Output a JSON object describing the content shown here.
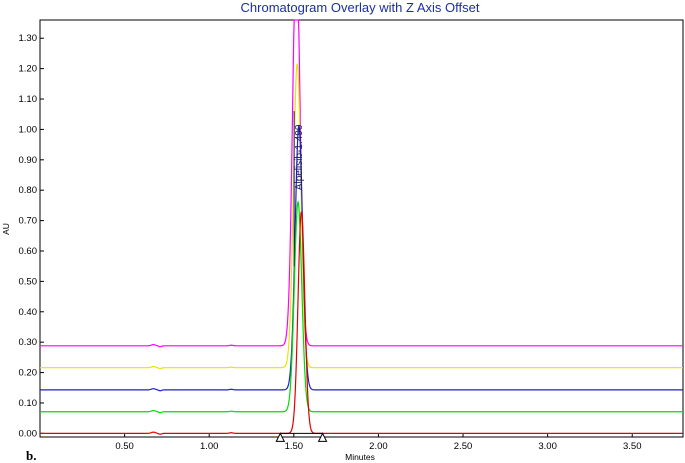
{
  "chart_data": {
    "type": "line",
    "title": "Chromatogram Overlay with Z Axis Offset",
    "xlabel": "Minutes",
    "ylabel": "AU",
    "panel_label": "b.",
    "xlim": [
      0.0,
      3.8
    ],
    "ylim": [
      -0.012,
      1.36
    ],
    "x_ticks": [
      "0.50",
      "1.00",
      "1.50",
      "2.00",
      "2.50",
      "3.00",
      "3.50"
    ],
    "y_ticks": [
      "0.00",
      "0.10",
      "0.20",
      "0.30",
      "0.40",
      "0.50",
      "0.60",
      "0.70",
      "0.80",
      "0.90",
      "1.00",
      "1.10",
      "1.20",
      "1.30"
    ],
    "grid": false,
    "peak_label": "Alpelisib-1.490",
    "peak_label_x": 1.49,
    "integration_marks_x": [
      1.42,
      1.67
    ],
    "series": [
      {
        "color": "#ff00ff",
        "baseline": 0.288,
        "peak_time": 1.515,
        "peak_height": 1.3,
        "sigma": 0.022
      },
      {
        "color": "#e6e600",
        "baseline": 0.216,
        "peak_time": 1.52,
        "peak_height": 1.0,
        "sigma": 0.022
      },
      {
        "color": "#1f1fc8",
        "baseline": 0.143,
        "peak_time": 1.53,
        "peak_height": 0.87,
        "sigma": 0.022
      },
      {
        "color": "#00dd00",
        "baseline": 0.071,
        "peak_time": 1.525,
        "peak_height": 0.69,
        "sigma": 0.022
      },
      {
        "color": "#e00000",
        "baseline": 0.0,
        "peak_time": 1.545,
        "peak_height": 0.73,
        "sigma": 0.02
      }
    ]
  }
}
